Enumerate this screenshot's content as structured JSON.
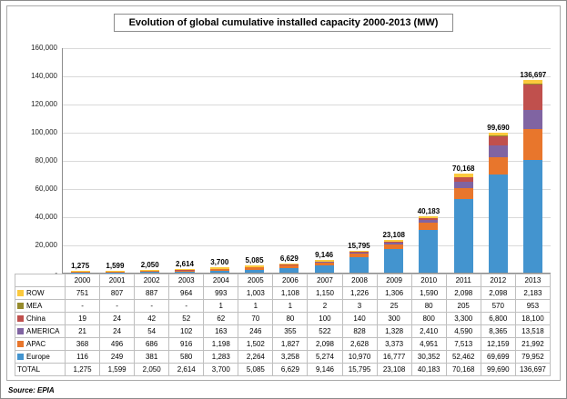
{
  "title": "Evolution of global cumulative installed capacity 2000-2013 (MW)",
  "source": "Source: EPIA",
  "chart_data": {
    "type": "bar",
    "stacked": true,
    "grid": true,
    "legend_position": "data-table-left",
    "title": "Evolution of global cumulative installed capacity 2000-2013 (MW)",
    "ylim": [
      0,
      160000
    ],
    "ytick_interval": 20000,
    "ytick_labels": [
      "160,000",
      "140,000",
      "120,000",
      "100,000",
      "80,000",
      "60,000",
      "40,000",
      "20,000",
      "-"
    ],
    "categories": [
      "2000",
      "2001",
      "2002",
      "2003",
      "2004",
      "2005",
      "2006",
      "2007",
      "2008",
      "2009",
      "2010",
      "2011",
      "2012",
      "2013"
    ],
    "series": [
      {
        "name": "ROW",
        "color": "#FBC93D",
        "values": [
          751,
          807,
          887,
          964,
          993,
          1003,
          1108,
          1150,
          1226,
          1306,
          1590,
          2098,
          2098,
          2183
        ],
        "display": [
          "751",
          "807",
          "887",
          "964",
          "993",
          "1,003",
          "1,108",
          "1,150",
          "1,226",
          "1,306",
          "1,590",
          "2,098",
          "2,098",
          "2,183"
        ]
      },
      {
        "name": "MEA",
        "color": "#958A2C",
        "values": [
          0,
          0,
          0,
          0,
          1,
          1,
          1,
          2,
          3,
          25,
          80,
          205,
          570,
          953
        ],
        "display": [
          "-",
          "-",
          "-",
          "-",
          "1",
          "1",
          "1",
          "2",
          "3",
          "25",
          "80",
          "205",
          "570",
          "953"
        ]
      },
      {
        "name": "China",
        "color": "#C0504D",
        "values": [
          19,
          24,
          42,
          52,
          62,
          70,
          80,
          100,
          140,
          300,
          800,
          3300,
          6800,
          18100
        ],
        "display": [
          "19",
          "24",
          "42",
          "52",
          "62",
          "70",
          "80",
          "100",
          "140",
          "300",
          "800",
          "3,300",
          "6,800",
          "18,100"
        ]
      },
      {
        "name": "AMERICA",
        "color": "#8064A2",
        "values": [
          21,
          24,
          54,
          102,
          163,
          246,
          355,
          522,
          828,
          1328,
          2410,
          4590,
          8365,
          13518
        ],
        "display": [
          "21",
          "24",
          "54",
          "102",
          "163",
          "246",
          "355",
          "522",
          "828",
          "1,328",
          "2,410",
          "4,590",
          "8,365",
          "13,518"
        ]
      },
      {
        "name": "APAC",
        "color": "#E8762C",
        "values": [
          368,
          496,
          686,
          916,
          1198,
          1502,
          1827,
          2098,
          2628,
          3373,
          4951,
          7513,
          12159,
          21992
        ],
        "display": [
          "368",
          "496",
          "686",
          "916",
          "1,198",
          "1,502",
          "1,827",
          "2,098",
          "2,628",
          "3,373",
          "4,951",
          "7,513",
          "12,159",
          "21,992"
        ]
      },
      {
        "name": "Europe",
        "color": "#4394CF",
        "values": [
          116,
          249,
          381,
          580,
          1283,
          2264,
          3258,
          5274,
          10970,
          16777,
          30352,
          52462,
          69699,
          79952
        ],
        "display": [
          "116",
          "249",
          "381",
          "580",
          "1,283",
          "2,264",
          "3,258",
          "5,274",
          "10,970",
          "16,777",
          "30,352",
          "52,462",
          "69,699",
          "79,952"
        ]
      }
    ],
    "totals": {
      "label": "TOTAL",
      "values": [
        1275,
        1599,
        2050,
        2614,
        3700,
        5085,
        6629,
        9146,
        15795,
        23108,
        40183,
        70168,
        99690,
        136697
      ],
      "display": [
        "1,275",
        "1,599",
        "2,050",
        "2,614",
        "3,700",
        "5,085",
        "6,629",
        "9,146",
        "15,795",
        "23,108",
        "40,183",
        "70,168",
        "99,690",
        "136,697"
      ]
    },
    "stack_order_bottom_to_top": [
      "Europe",
      "APAC",
      "AMERICA",
      "China",
      "MEA",
      "ROW"
    ]
  }
}
